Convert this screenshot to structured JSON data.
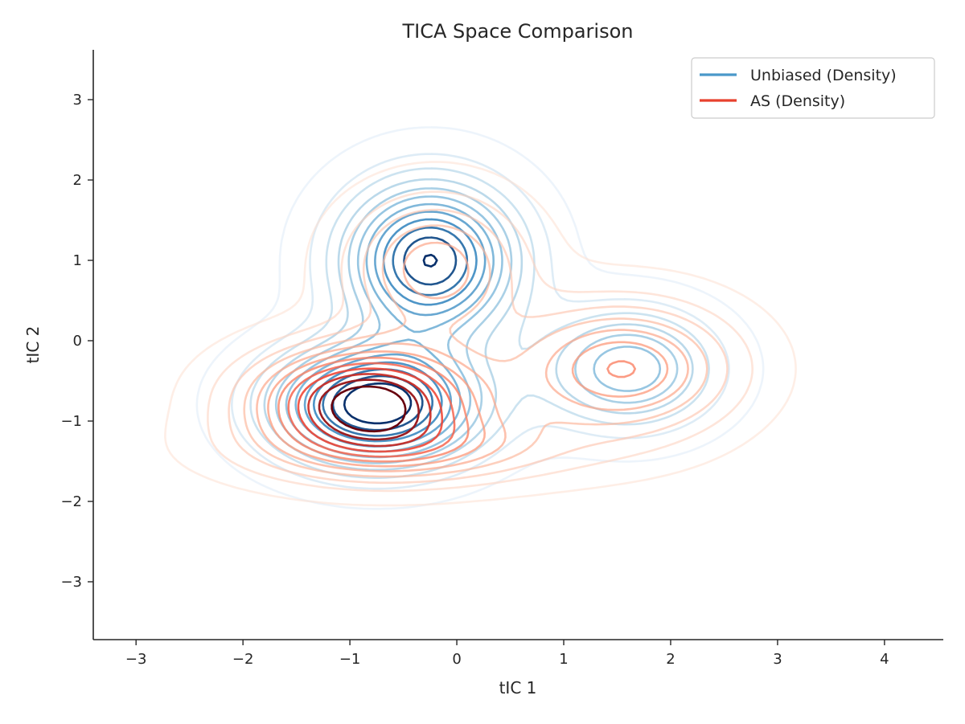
{
  "chart_data": {
    "type": "contour",
    "title": "TICA Space Comparison",
    "xlabel": "tIC 1",
    "ylabel": "tIC 2",
    "xlim": [
      -3.4,
      4.55
    ],
    "ylim": [
      -3.72,
      3.62
    ],
    "xticks": [
      -3,
      -2,
      -1,
      0,
      1,
      2,
      3,
      4
    ],
    "yticks": [
      -3,
      -2,
      -1,
      0,
      1,
      2,
      3
    ],
    "xtick_labels": [
      "−3",
      "−2",
      "−1",
      "0",
      "1",
      "2",
      "3",
      "4"
    ],
    "ytick_labels": [
      "−3",
      "−2",
      "−1",
      "0",
      "1",
      "2",
      "3"
    ],
    "legend_position": "top-right",
    "grid": false,
    "series": [
      {
        "name": "Unbiased (Density)",
        "legend_color": "#4a98c9",
        "colormap": [
          "#deebf7",
          "#9ecae1",
          "#6baed6",
          "#3182bd",
          "#08306b"
        ],
        "components": [
          {
            "center": [
              -0.25,
              1.0
            ],
            "sigma": [
              0.55,
              0.65
            ],
            "weight": 1.0
          },
          {
            "center": [
              -0.75,
              -0.8
            ],
            "sigma": [
              0.65,
              0.5
            ],
            "weight": 1.1
          },
          {
            "center": [
              1.6,
              -0.35
            ],
            "sigma": [
              0.55,
              0.5
            ],
            "weight": 0.55
          }
        ]
      },
      {
        "name": "AS (Density)",
        "legend_color": "#e8412e",
        "colormap": [
          "#fee0d2",
          "#fcbba1",
          "#fc9272",
          "#ef3b2c",
          "#67000d"
        ],
        "components": [
          {
            "center": [
              -0.85,
              -0.75
            ],
            "sigma": [
              0.7,
              0.45
            ],
            "weight": 1.3
          },
          {
            "center": [
              -0.2,
              0.9
            ],
            "sigma": [
              0.55,
              0.6
            ],
            "weight": 0.55
          },
          {
            "center": [
              1.55,
              -0.35
            ],
            "sigma": [
              0.7,
              0.55
            ],
            "weight": 0.7
          },
          {
            "center": [
              -0.4,
              -1.35
            ],
            "sigma": [
              1.0,
              0.3
            ],
            "weight": 0.45
          }
        ]
      }
    ]
  }
}
